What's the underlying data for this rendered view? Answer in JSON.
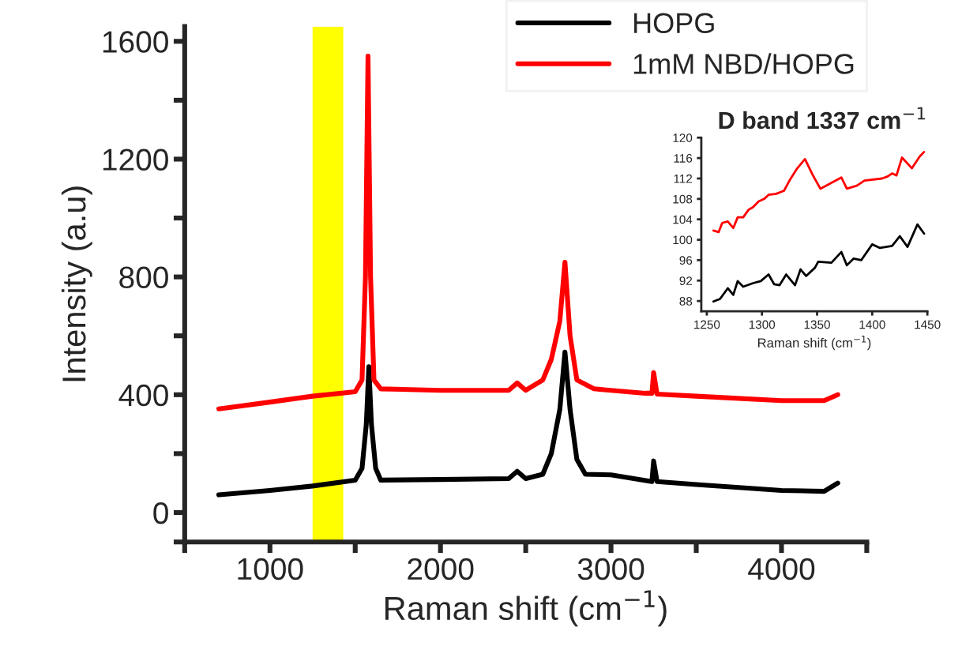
{
  "chart_data": [
    {
      "type": "line",
      "xlabel": "Raman shift (cm$^{−1}$)",
      "ylabel": "Intensity (a.u)",
      "legend": "top right",
      "grid": false,
      "marker": "none",
      "line_style": "solid",
      "xlim": [
        500,
        4500
      ],
      "ylim": [
        -100,
        1650
      ],
      "xticks": [
        {
          "value": 500,
          "label": null
        },
        1000,
        {
          "value": 1500,
          "label": null
        },
        2000,
        {
          "value": 2500,
          "label": null
        },
        3000,
        {
          "value": 3500,
          "label": null
        },
        4000,
        {
          "value": 4500,
          "label": null
        }
      ],
      "yticks": [
        {
          "value": -100,
          "label": null
        },
        0,
        {
          "value": 200,
          "label": null
        },
        400,
        {
          "value": 600,
          "label": null
        },
        800,
        {
          "value": 1000,
          "label": null
        },
        1200,
        {
          "value": 1400,
          "label": null
        },
        1600
      ],
      "bands": [
        {
          "axis": "x",
          "from": 1250,
          "to": 1430,
          "color": "#ffff00"
        }
      ],
      "series": [
        {
          "name": "HOPG",
          "color": "#000000",
          "x": [
            700,
            1000,
            1250,
            1500,
            1540,
            1565,
            1580,
            1595,
            1620,
            1650,
            2000,
            2400,
            2450,
            2500,
            2600,
            2650,
            2700,
            2730,
            2760,
            2800,
            2850,
            3000,
            3240,
            3250,
            3270,
            3500,
            4000,
            4250,
            4330
          ],
          "values": [
            60,
            75,
            90,
            110,
            150,
            300,
            495,
            300,
            150,
            110,
            112,
            115,
            140,
            115,
            130,
            200,
            350,
            545,
            350,
            180,
            130,
            128,
            105,
            175,
            105,
            95,
            75,
            72,
            100
          ]
        },
        {
          "name": "1mM NBD/HOPG",
          "color": "#ff0000",
          "x": [
            700,
            1000,
            1250,
            1500,
            1540,
            1560,
            1575,
            1590,
            1610,
            1650,
            2000,
            2400,
            2450,
            2500,
            2600,
            2650,
            2700,
            2730,
            2760,
            2800,
            2900,
            3200,
            3240,
            3250,
            3270,
            3500,
            4000,
            4250,
            4330
          ],
          "values": [
            352,
            375,
            395,
            410,
            450,
            800,
            1550,
            800,
            450,
            420,
            415,
            415,
            440,
            415,
            450,
            520,
            650,
            850,
            600,
            450,
            420,
            405,
            405,
            475,
            402,
            395,
            380,
            380,
            400
          ]
        }
      ]
    },
    {
      "type": "line",
      "title": "D band 1337 cm$^{−1}$",
      "xlabel": "Raman shift (cm$^{−1}$)",
      "grid": false,
      "marker": "none",
      "line_style": "solid",
      "xlim": [
        1245,
        1450
      ],
      "ylim": [
        86,
        120
      ],
      "xticks": [
        1250,
        1300,
        1350,
        1400,
        1450
      ],
      "yticks": [
        88,
        92,
        96,
        100,
        104,
        108,
        112,
        116,
        120
      ],
      "series": [
        {
          "color": "#ff0000",
          "x": [
            1256,
            1260.7,
            1264,
            1269,
            1274,
            1278,
            1283,
            1288,
            1292,
            1297,
            1302,
            1306,
            1313,
            1320,
            1325,
            1332,
            1339,
            1346,
            1353,
            1360,
            1367,
            1372,
            1377,
            1386,
            1393,
            1409,
            1414,
            1418,
            1422,
            1427,
            1436,
            1443,
            1447
          ],
          "values": [
            101.8,
            101.5,
            103.3,
            103.6,
            102.3,
            104.4,
            104.4,
            105.9,
            106.4,
            107.5,
            108,
            108.8,
            109,
            109.6,
            111.6,
            114,
            115.8,
            112.7,
            110,
            110.8,
            111.6,
            112.2,
            110,
            110.6,
            111.6,
            112,
            112.4,
            113,
            112.6,
            116.1,
            114,
            116.3,
            117.2
          ]
        },
        {
          "color": "#000000",
          "x": [
            1256,
            1262,
            1269,
            1274,
            1278,
            1283,
            1292,
            1299,
            1306,
            1311,
            1316,
            1322,
            1330,
            1335,
            1340,
            1348,
            1351,
            1363,
            1372,
            1377,
            1383,
            1390,
            1400,
            1407,
            1418,
            1425,
            1432,
            1441,
            1447
          ],
          "values": [
            87.9,
            88.4,
            90.5,
            89.2,
            91.9,
            90.8,
            91.5,
            91.9,
            93.2,
            91.3,
            91.1,
            93.2,
            91.1,
            94.2,
            92.9,
            94.5,
            95.7,
            95.5,
            97.6,
            95,
            96.3,
            96,
            99.1,
            98.4,
            98.8,
            100.7,
            98.6,
            103,
            101.2
          ]
        }
      ]
    }
  ]
}
